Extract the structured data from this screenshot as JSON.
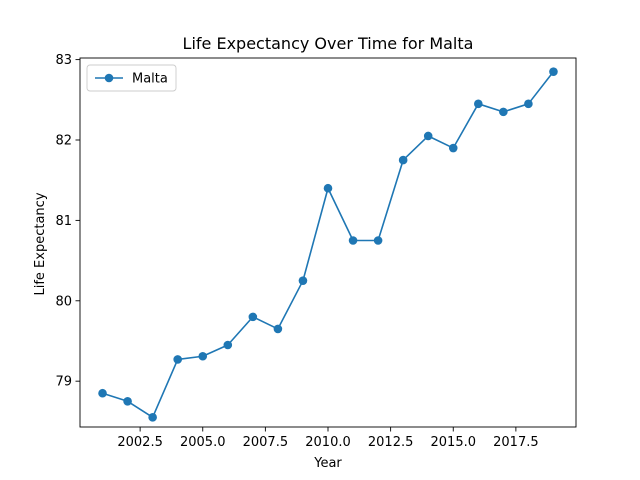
{
  "chart_data": {
    "type": "line",
    "title": "Life Expectancy Over Time for Malta",
    "xlabel": "Year",
    "ylabel": "Life Expectancy",
    "xlim": [
      2000.1,
      2019.9
    ],
    "ylim": [
      78.43,
      83.02
    ],
    "xticks": [
      2002.5,
      2005.0,
      2007.5,
      2010.0,
      2012.5,
      2015.0,
      2017.5
    ],
    "xtick_labels": [
      "2002.5",
      "2005.0",
      "2007.5",
      "2010.0",
      "2012.5",
      "2015.0",
      "2017.5"
    ],
    "yticks": [
      79,
      80,
      81,
      82,
      83
    ],
    "ytick_labels": [
      "79",
      "80",
      "81",
      "82",
      "83"
    ],
    "grid": false,
    "legend_position": "top-left",
    "series": [
      {
        "name": "Malta",
        "color": "#1f77b4",
        "marker": "circle",
        "x": [
          2001,
          2002,
          2003,
          2004,
          2005,
          2006,
          2007,
          2008,
          2009,
          2010,
          2011,
          2012,
          2013,
          2014,
          2015,
          2016,
          2017,
          2018,
          2019
        ],
        "y": [
          78.85,
          78.75,
          78.55,
          79.27,
          79.31,
          79.45,
          79.8,
          79.65,
          80.25,
          81.4,
          80.75,
          80.75,
          81.75,
          82.05,
          81.9,
          82.45,
          82.35,
          82.45,
          82.85
        ]
      }
    ]
  }
}
